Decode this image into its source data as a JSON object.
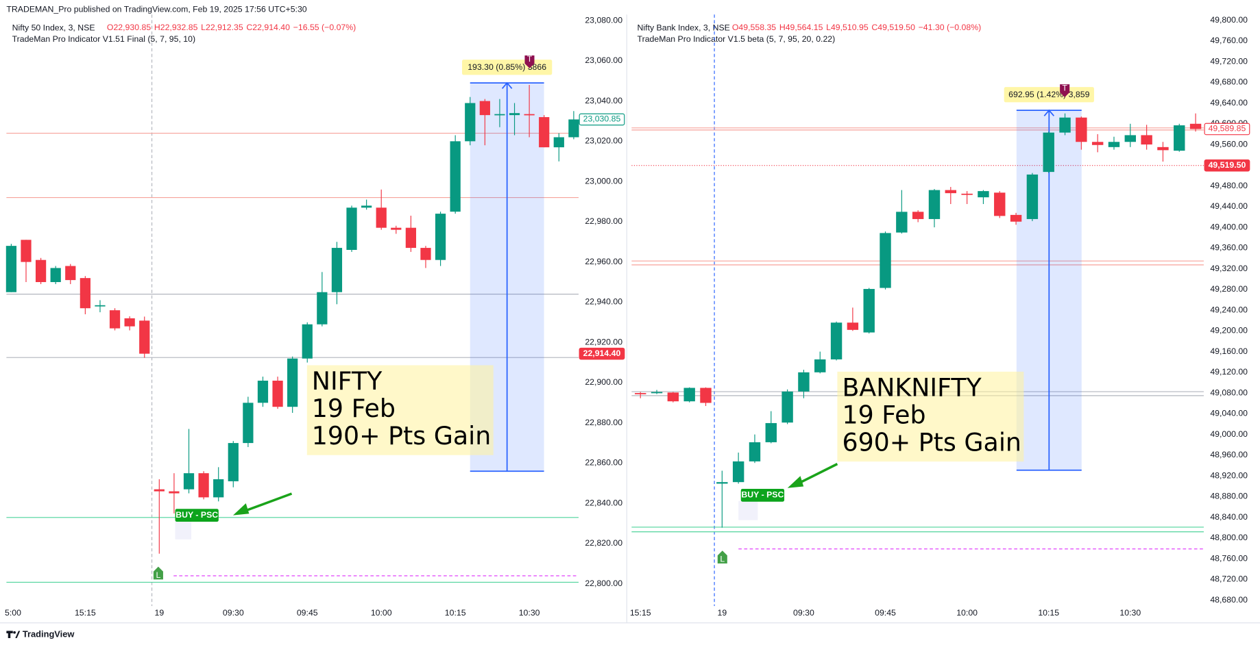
{
  "header": {
    "published": "TRADEMAN_Pro published on TradingView.com, Feb 19, 2025 17:56 UTC+5:30"
  },
  "footer": {
    "brand": "TradingView"
  },
  "chart_data": [
    {
      "type": "candlestick",
      "title": "Nifty 50 Index, 3, NSE",
      "ohlc_legend": [
        "O22,930.85",
        "H22,932.85",
        "L22,912.35",
        "C22,914.40"
      ],
      "change": "−16.55 (−0.07%)",
      "indicator": "TradeMan Pro Indicator V1.51 Final (5, 7, 95, 10)",
      "categories": [
        "5:00",
        null,
        null,
        null,
        null,
        "15:15",
        null,
        null,
        null,
        null,
        "19",
        null,
        null,
        null,
        null,
        "09:30",
        null,
        null,
        null,
        null,
        "09:45",
        null,
        null,
        null,
        null,
        "10:00",
        null,
        null,
        null,
        null,
        "10:15",
        null,
        null,
        null,
        null,
        "10:30",
        null,
        null,
        null
      ],
      "open": [
        22945,
        22971,
        22961,
        22950,
        22958,
        22952,
        22938,
        22936,
        22932,
        22930.85,
        22847,
        22846,
        22847,
        22855,
        22843,
        22851,
        22870,
        22890,
        22901,
        22888,
        22912,
        22929,
        22945,
        22966,
        22987,
        22987,
        22977,
        22977,
        22967,
        22961,
        22985,
        23020,
        23040,
        23033,
        23033,
        23033.5,
        23032,
        23017,
        23022
      ],
      "high": [
        22969,
        22971,
        22962,
        22958,
        22959,
        22953,
        22941,
        22937,
        22933,
        22932.85,
        22852,
        22855,
        22877,
        22856,
        22858,
        22871,
        22893,
        22903,
        22903,
        22913,
        22930,
        22955,
        22970,
        22988,
        22991,
        22996,
        22978,
        22983,
        22968,
        22985,
        23023,
        23042,
        23041,
        23041,
        23039,
        23048,
        23033,
        23024,
        23035
      ],
      "low": [
        22945,
        22950,
        22949,
        22949,
        22949,
        22934,
        22935,
        22926,
        22926,
        22912.35,
        22815,
        22835,
        22845,
        22842,
        22841,
        22848,
        22868,
        22888,
        22887,
        22885,
        22910,
        22928,
        22939,
        22965,
        22986,
        22976,
        22974,
        22965,
        22957,
        22958,
        22984,
        23018,
        23018,
        23027,
        23023,
        23022,
        23017,
        23010,
        23021
      ],
      "close": [
        22968,
        22960,
        22950,
        22957,
        22951,
        22937,
        22938.5,
        22927,
        22928,
        22914.4,
        22846,
        22845,
        22855,
        22843,
        22852,
        22870,
        22890,
        22901,
        22888,
        22912,
        22929,
        22945,
        22967,
        22987,
        22988,
        22977,
        22976,
        22967,
        22961,
        22984,
        23020,
        23039,
        23033,
        23033.5,
        23034,
        23033,
        23017,
        23022,
        23030.85
      ],
      "up_color": "#089981",
      "down_color": "#f23645",
      "ylim": [
        22787,
        23083
      ],
      "yticks": [
        {
          "value": 22800,
          "label": "22,800.00"
        },
        {
          "value": 22820,
          "label": "22,820.00"
        },
        {
          "value": 22840,
          "label": "22,840.00"
        },
        {
          "value": 22860,
          "label": "22,860.00"
        },
        {
          "value": 22880,
          "label": "22,880.00"
        },
        {
          "value": 22900,
          "label": "22,900.00"
        },
        {
          "value": 22920,
          "label": "22,920.00"
        },
        {
          "value": 22940,
          "label": "22,940.00"
        },
        {
          "value": 22960,
          "label": "22,960.00"
        },
        {
          "value": 22980,
          "label": "22,980.00"
        },
        {
          "value": 23000,
          "label": "23,000.00"
        },
        {
          "value": 23020,
          "label": "23,020.00"
        },
        {
          "value": 23040,
          "label": "23,040.00"
        },
        {
          "value": 23060,
          "label": "23,060.00"
        },
        {
          "value": 23080,
          "label": "23,080.00"
        }
      ],
      "levels": [
        {
          "value": 23024,
          "color": "#f7a29a",
          "style": "solid"
        },
        {
          "value": 22992,
          "color": "#f7a29a",
          "style": "solid"
        },
        {
          "value": 22944,
          "color": "#b2b5be",
          "style": "solid"
        },
        {
          "value": 22912.5,
          "color": "#b2b5be",
          "style": "solid"
        },
        {
          "value": 22833,
          "color": "#4cd39a",
          "style": "solid"
        },
        {
          "value": 22800.8,
          "color": "#4cd39a",
          "style": "solid"
        },
        {
          "value": 22804,
          "color": "#e040fb",
          "style": "dashed"
        }
      ],
      "price_labels": [
        {
          "value": 23030.85,
          "label": "23,030.85",
          "color": "#089981",
          "style": "outline"
        },
        {
          "value": 22914.4,
          "label": "22,914.40",
          "color": "#f23645",
          "style": "filled"
        }
      ],
      "range_box": {
        "top": 23049,
        "bottom": 22856,
        "label": "193.30 (0.85%) 3866"
      },
      "annotation": [
        "NIFTY",
        "19 Feb",
        "190+ Pts Gain"
      ],
      "signal": "BUY - PSC",
      "markers": [
        "L",
        "T"
      ]
    },
    {
      "type": "candlestick",
      "title": "Nifty Bank Index, 3, NSE",
      "ohlc_legend": [
        "O49,558.35",
        "H49,564.15",
        "L49,510.95",
        "C49,519.50"
      ],
      "change": "−41.30 (−0.08%)",
      "indicator": "TradeMan Pro Indicator V1.5 beta (5, 7, 95, 20, 0.22)",
      "categories": [
        "15:15",
        null,
        null,
        null,
        null,
        "19",
        null,
        null,
        null,
        null,
        "09:30",
        null,
        null,
        null,
        null,
        "09:45",
        null,
        null,
        null,
        null,
        "10:00",
        null,
        null,
        null,
        null,
        "10:15",
        null,
        null,
        null,
        null,
        "10:30",
        null,
        null,
        null,
        null
      ],
      "open": [
        49080,
        49081,
        49081,
        49064,
        49090,
        48905,
        48908,
        48948,
        48985,
        49023,
        49083,
        49120,
        49145,
        49216,
        49197,
        49283,
        49390,
        49430,
        49416,
        49472,
        49465,
        49458,
        49467,
        49424,
        49416,
        49507,
        49583,
        49612,
        49565,
        49555,
        49565,
        49578,
        49555,
        49548,
        49600
      ],
      "high": [
        49082,
        49086,
        49082,
        49091,
        49091,
        48930,
        48965,
        49000,
        49045,
        49087,
        49125,
        49160,
        49218,
        49245,
        49283,
        49392,
        49472,
        49433,
        49474,
        49478,
        49470,
        49472,
        49470,
        49428,
        49505,
        49585,
        49620,
        49614,
        49580,
        49575,
        49600,
        49598,
        49565,
        49600,
        49620
      ],
      "low": [
        49070,
        49078,
        49062,
        49062,
        49055,
        48820,
        48905,
        48945,
        48983,
        49020,
        49070,
        49118,
        49143,
        49200,
        49195,
        49280,
        49388,
        49410,
        49400,
        49445,
        49445,
        49445,
        49418,
        49405,
        49412,
        49505,
        49578,
        49550,
        49545,
        49550,
        49555,
        49550,
        49527,
        49546,
        49585
      ],
      "close": [
        49079,
        49082,
        49064,
        49090,
        49061,
        48908,
        48948,
        48985,
        49022,
        49083,
        49120,
        49145,
        49216,
        49202,
        49281,
        49389,
        49430,
        49416,
        49472,
        49466,
        49464,
        49470,
        49422,
        49411,
        49502,
        49583,
        49612,
        49565,
        49559,
        49565,
        49578,
        49560,
        49549,
        49597,
        49589.85
      ],
      "up_color": "#089981",
      "down_color": "#f23645",
      "ylim": [
        48661,
        49811
      ],
      "yticks": [
        {
          "value": 48680,
          "label": "48,680.00"
        },
        {
          "value": 48720,
          "label": "48,720.00"
        },
        {
          "value": 48760,
          "label": "48,760.00"
        },
        {
          "value": 48800,
          "label": "48,800.00"
        },
        {
          "value": 48840,
          "label": "48,840.00"
        },
        {
          "value": 48880,
          "label": "48,880.00"
        },
        {
          "value": 48920,
          "label": "48,920.00"
        },
        {
          "value": 48960,
          "label": "48,960.00"
        },
        {
          "value": 49000,
          "label": "49,000.00"
        },
        {
          "value": 49040,
          "label": "49,040.00"
        },
        {
          "value": 49080,
          "label": "49,080.00"
        },
        {
          "value": 49120,
          "label": "49,120.00"
        },
        {
          "value": 49160,
          "label": "49,160.00"
        },
        {
          "value": 49200,
          "label": "49,200.00"
        },
        {
          "value": 49240,
          "label": "49,240.00"
        },
        {
          "value": 49280,
          "label": "49,280.00"
        },
        {
          "value": 49320,
          "label": "49,320.00"
        },
        {
          "value": 49360,
          "label": "49,360.00"
        },
        {
          "value": 49400,
          "label": "49,400.00"
        },
        {
          "value": 49440,
          "label": "49,440.00"
        },
        {
          "value": 49480,
          "label": "49,480.00"
        },
        {
          "value": 49520,
          "label": "49,520.00"
        },
        {
          "value": 49560,
          "label": "49,560.00"
        },
        {
          "value": 49600,
          "label": "49,600.00"
        },
        {
          "value": 49640,
          "label": "49,640.00"
        },
        {
          "value": 49680,
          "label": "49,680.00"
        },
        {
          "value": 49720,
          "label": "49,720.00"
        },
        {
          "value": 49760,
          "label": "49,760.00"
        },
        {
          "value": 49800,
          "label": "49,800.00"
        }
      ],
      "levels": [
        {
          "value": 49592,
          "color": "#f7a29a",
          "style": "solid"
        },
        {
          "value": 49588,
          "color": "#f7a29a",
          "style": "solid"
        },
        {
          "value": 49519.5,
          "color": "#f23645",
          "style": "dotted"
        },
        {
          "value": 49335,
          "color": "#f7a29a",
          "style": "solid"
        },
        {
          "value": 49327.5,
          "color": "#f7a29a",
          "style": "solid"
        },
        {
          "value": 49082.7,
          "color": "#b2b5be",
          "style": "solid"
        },
        {
          "value": 49075,
          "color": "#b2b5be",
          "style": "solid"
        },
        {
          "value": 48821,
          "color": "#4cd39a",
          "style": "solid"
        },
        {
          "value": 48812,
          "color": "#4cd39a",
          "style": "solid"
        },
        {
          "value": 48779,
          "color": "#e040fb",
          "style": "dashed"
        }
      ],
      "price_labels": [
        {
          "value": 49589.85,
          "label": "49,589.85",
          "color": "#f23645",
          "style": "outline"
        },
        {
          "value": 49519.5,
          "label": "49,519.50",
          "color": "#f23645",
          "style": "filled"
        }
      ],
      "range_box": {
        "top": 49626,
        "bottom": 48931,
        "label": "692.95 (1.42%) 3,859"
      },
      "annotation": [
        "BANKNIFTY",
        "19 Feb",
        "690+ Pts Gain"
      ],
      "signal": "BUY - PSC",
      "markers": [
        "L",
        "T"
      ]
    }
  ]
}
